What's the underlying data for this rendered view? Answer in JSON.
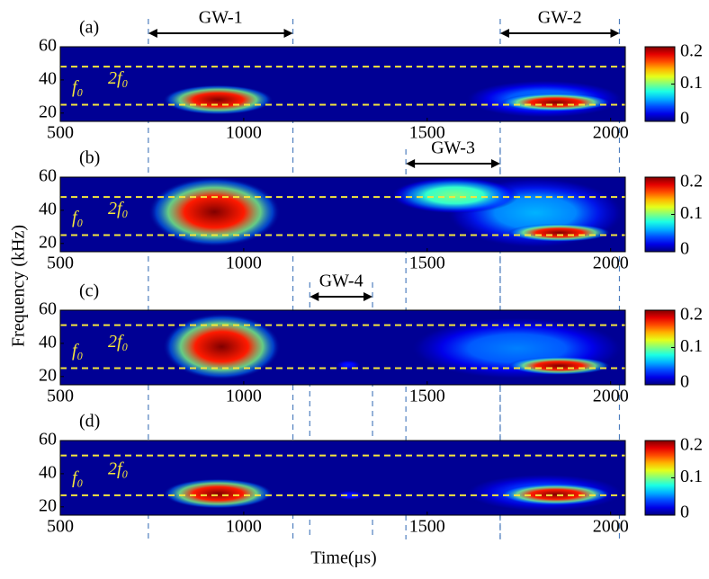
{
  "figure": {
    "xlabel": "Time(μs)",
    "ylabel": "Frequency (kHz)"
  },
  "chart_data": [
    {
      "type": "heatmap",
      "label": "(a)",
      "xlim": [
        500,
        2040
      ],
      "ylim": [
        15,
        60
      ],
      "xticks": [
        500,
        1000,
        1500,
        2000
      ],
      "yticks": [
        20,
        40,
        60
      ],
      "clim": [
        0,
        0.2
      ],
      "cticks": [
        0,
        0.1,
        0.2
      ],
      "hlines": [
        48,
        25
      ],
      "hline_labels": [
        "f₀",
        "2f₀"
      ],
      "annotations": [
        {
          "label": "GW-1",
          "x": [
            740,
            1134
          ]
        },
        {
          "label": "GW-2",
          "x": [
            1699,
            2024
          ]
        }
      ],
      "blobs": [
        {
          "x": [
            1600,
            2040
          ],
          "y": [
            17,
            40
          ],
          "value": 0.05
        },
        {
          "x": [
            780,
            1080
          ],
          "y": [
            19,
            37
          ],
          "value": 0.2
        },
        {
          "x": [
            1700,
            2000
          ],
          "y": [
            21,
            32
          ],
          "value": 0.2
        }
      ]
    },
    {
      "type": "heatmap",
      "label": "(b)",
      "xlim": [
        500,
        2040
      ],
      "ylim": [
        15,
        60
      ],
      "xticks": [
        500,
        1000,
        1500,
        2000
      ],
      "yticks": [
        20,
        40,
        60
      ],
      "clim": [
        0,
        0.2
      ],
      "cticks": [
        0,
        0.1,
        0.2
      ],
      "hlines": [
        48,
        25
      ],
      "hline_labels": [
        "f₀",
        "2f₀"
      ],
      "annotations": [
        {
          "label": "GW-3",
          "x": [
            1442,
            1699
          ]
        }
      ],
      "blobs": [
        {
          "x": [
            1550,
            2040
          ],
          "y": [
            17,
            60
          ],
          "value": 0.06
        },
        {
          "x": [
            1400,
            1750
          ],
          "y": [
            38,
            60
          ],
          "value": 0.1
        },
        {
          "x": [
            740,
            1100
          ],
          "y": [
            18,
            60
          ],
          "value": 0.2
        },
        {
          "x": [
            1720,
            2000
          ],
          "y": [
            21,
            32
          ],
          "value": 0.2
        }
      ]
    },
    {
      "type": "heatmap",
      "label": "(c)",
      "xlim": [
        500,
        2040
      ],
      "ylim": [
        15,
        60
      ],
      "xticks": [
        500,
        1000,
        1500,
        2000
      ],
      "yticks": [
        20,
        40,
        60
      ],
      "clim": [
        0,
        0.2
      ],
      "cticks": [
        0,
        0.1,
        0.2
      ],
      "hlines": [
        51,
        25
      ],
      "hline_labels": [
        "f₀",
        "2f₀"
      ],
      "annotations": [
        {
          "label": "GW-4",
          "x": [
            1180,
            1351
          ]
        }
      ],
      "blobs": [
        {
          "x": [
            1450,
            2040
          ],
          "y": [
            18,
            56
          ],
          "value": 0.05
        },
        {
          "x": [
            1250,
            1320
          ],
          "y": [
            24,
            30
          ],
          "value": 0.03
        },
        {
          "x": [
            780,
            1100
          ],
          "y": [
            18,
            58
          ],
          "value": 0.2
        },
        {
          "x": [
            1720,
            2000
          ],
          "y": [
            21,
            32
          ],
          "value": 0.2
        }
      ]
    },
    {
      "type": "heatmap",
      "label": "(d)",
      "xlim": [
        500,
        2040
      ],
      "ylim": [
        15,
        60
      ],
      "xticks": [
        500,
        1000,
        1500,
        2000
      ],
      "yticks": [
        20,
        40,
        60
      ],
      "clim": [
        0,
        0.2
      ],
      "cticks": [
        0,
        0.1,
        0.2
      ],
      "hlines": [
        51,
        27
      ],
      "hline_labels": [
        "f₀",
        "2f₀"
      ],
      "annotations": [],
      "blobs": [
        {
          "x": [
            1600,
            2040
          ],
          "y": [
            17,
            40
          ],
          "value": 0.04
        },
        {
          "x": [
            1250,
            1330
          ],
          "y": [
            24,
            30
          ],
          "value": 0.03
        },
        {
          "x": [
            780,
            1080
          ],
          "y": [
            19,
            37
          ],
          "value": 0.2
        },
        {
          "x": [
            1700,
            2000
          ],
          "y": [
            21,
            34
          ],
          "value": 0.2
        }
      ]
    }
  ]
}
